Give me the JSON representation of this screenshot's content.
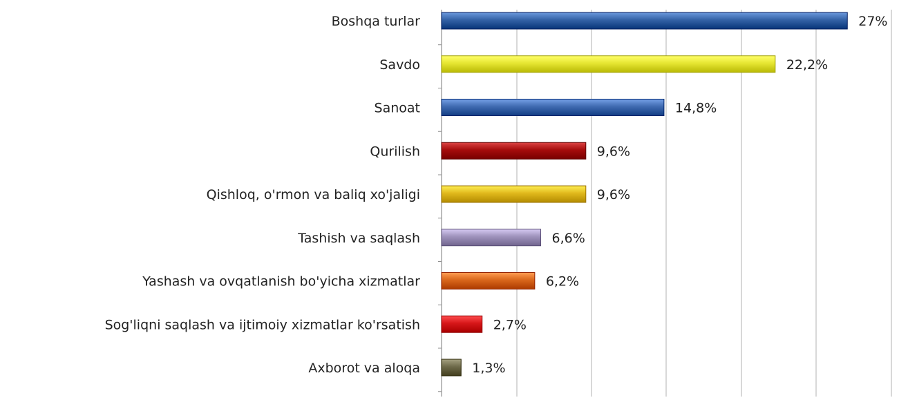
{
  "chart_data": {
    "type": "bar",
    "orientation": "horizontal",
    "categories": [
      "Boshqa turlar",
      "Savdo",
      "Sanoat",
      "Qurilish",
      "Qishloq, o'rmon va baliq xo'jaligi",
      "Tashish va saqlash",
      "Yashash va ovqatlanish bo'yicha xizmatlar",
      "Sog'liqni saqlash va ijtimoiy xizmatlar ko'rsatish",
      "Axborot va aloqa"
    ],
    "values": [
      27,
      22.2,
      14.8,
      9.6,
      9.6,
      6.6,
      6.2,
      2.7,
      1.3
    ],
    "value_labels": [
      "27%",
      "22,2%",
      "14,8%",
      "9,6%",
      "9,6%",
      "6,6%",
      "6,2%",
      "2,7%",
      "1,3%"
    ],
    "colors": [
      "#3462a6",
      "#e6e632",
      "#3f6ab0",
      "#a50c0c",
      "#e0b81c",
      "#9e92bb",
      "#d9671c",
      "#d61618",
      "#6e6a4a"
    ],
    "xlim": [
      0,
      30
    ],
    "grid": true,
    "legend": "none",
    "title": "",
    "xlabel": "",
    "ylabel": ""
  }
}
